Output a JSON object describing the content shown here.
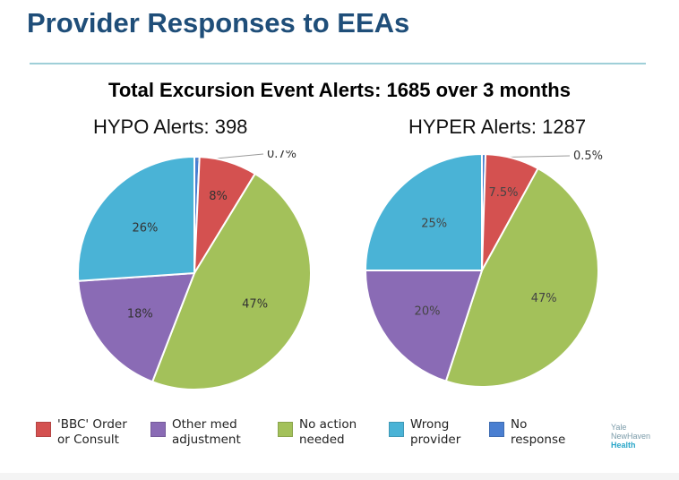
{
  "slide": {
    "title": "Provider Responses to EEAs"
  },
  "chart_data": [
    {
      "type": "pie",
      "title": "Total Excursion Event Alerts: 1685 over 3 months",
      "subtitle": "HYPO Alerts: 398",
      "slices": [
        {
          "label": "No response",
          "value": 0.7,
          "text": "0.7%",
          "color": "#4a7fd1"
        },
        {
          "label": "'BBC' Order or Consult",
          "value": 8,
          "text": "8%",
          "color": "#d45150"
        },
        {
          "label": "No action needed",
          "value": 47,
          "text": "47%",
          "color": "#a3c15a"
        },
        {
          "label": "Other med adjustment",
          "value": 18,
          "text": "18%",
          "color": "#8a6bb5"
        },
        {
          "label": "Wrong provider",
          "value": 26,
          "text": "26%",
          "color": "#4ab3d6"
        }
      ]
    },
    {
      "type": "pie",
      "title": "Total Excursion Event Alerts: 1685 over 3 months",
      "subtitle": "HYPER Alerts: 1287",
      "slices": [
        {
          "label": "No response",
          "value": 0.5,
          "text": "0.5%",
          "color": "#4a7fd1"
        },
        {
          "label": "'BBC' Order or Consult",
          "value": 7.5,
          "text": "7.5%",
          "color": "#d45150"
        },
        {
          "label": "No action needed",
          "value": 47,
          "text": "47%",
          "color": "#a3c15a"
        },
        {
          "label": "Other med adjustment",
          "value": 20,
          "text": "20%",
          "color": "#8a6bb5"
        },
        {
          "label": "Wrong provider",
          "value": 25,
          "text": "25%",
          "color": "#4ab3d6"
        }
      ]
    }
  ],
  "legend": [
    {
      "label": "'BBC' Order or Consult",
      "color": "#d45150"
    },
    {
      "label": "Other med adjustment",
      "color": "#8a6bb5"
    },
    {
      "label": "No action needed",
      "color": "#a3c15a"
    },
    {
      "label": "Wrong provider",
      "color": "#4ab3d6"
    },
    {
      "label": "No response",
      "color": "#4a7fd1"
    }
  ],
  "logo": {
    "line1": "Yale",
    "line2": "NewHaven",
    "line3": "Health"
  }
}
